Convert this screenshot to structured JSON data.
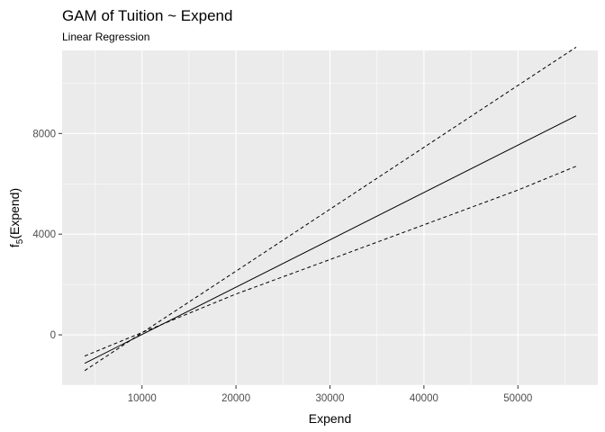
{
  "chart_data": {
    "type": "line",
    "title": "GAM of Tuition ~ Expend",
    "subtitle": "Linear Regression",
    "xlabel": "Expend",
    "ylabel": {
      "base": "f",
      "subscript": "5",
      "rest": "(Expend)"
    },
    "xlim": [
      1500,
      58500
    ],
    "ylim": [
      -2000,
      11300
    ],
    "x_ticks": [
      10000,
      20000,
      30000,
      40000,
      50000
    ],
    "x_tick_labels": [
      "10000",
      "20000",
      "30000",
      "40000",
      "50000"
    ],
    "y_ticks": [
      0,
      4000,
      8000
    ],
    "y_tick_labels": [
      "0",
      "4000",
      "8000"
    ],
    "grid": true,
    "legend": "none",
    "colors": {
      "panel": "#ebebeb",
      "grid": "#ffffff",
      "line": "#000000"
    },
    "series": [
      {
        "style": "solid",
        "x": [
          3900,
          56200
        ],
        "y": [
          -1130,
          8700
        ]
      },
      {
        "style": "dashed",
        "x": [
          3900,
          10000,
          20000,
          30000,
          40000,
          50000,
          56200
        ],
        "y": [
          -1420,
          80,
          2530,
          4990,
          7450,
          9910,
          11430
        ]
      },
      {
        "style": "dashed",
        "x": [
          3900,
          10000,
          20000,
          30000,
          40000,
          50000,
          56200
        ],
        "y": [
          -840,
          90,
          1620,
          2990,
          4370,
          5750,
          6700
        ]
      }
    ]
  }
}
